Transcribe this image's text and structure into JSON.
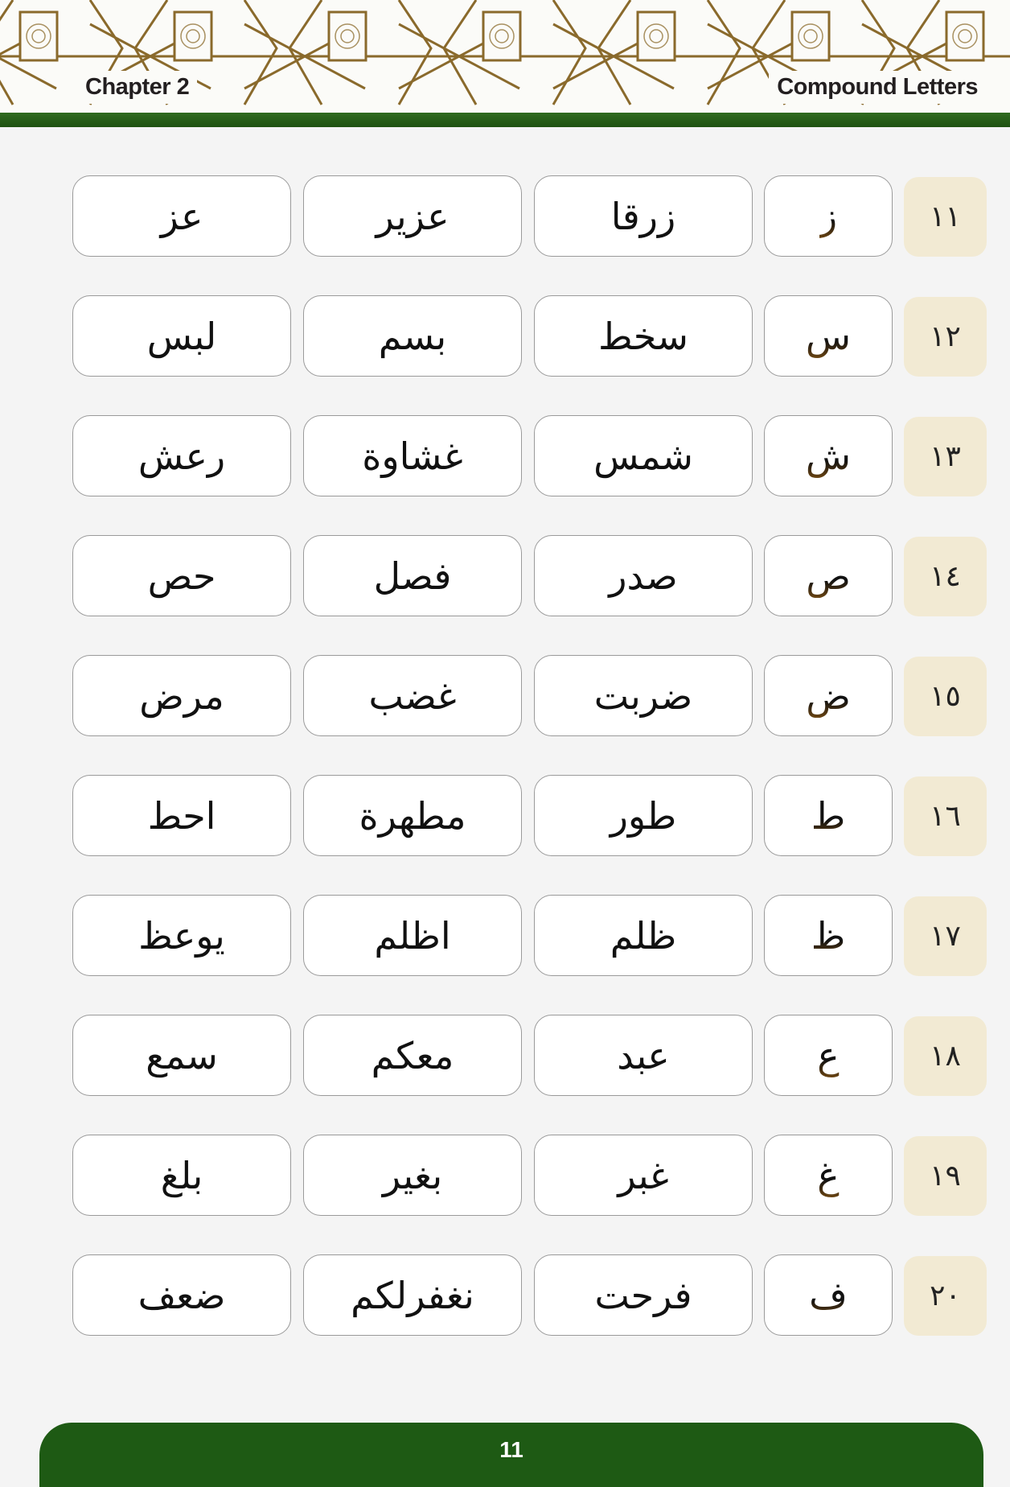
{
  "header": {
    "chapter": "Chapter 2",
    "title": "Compound Letters"
  },
  "colors": {
    "green": "#1e5a14",
    "pattern": "#8a6a2c",
    "number_bg": "#f2ead3"
  },
  "rows": [
    {
      "number": "١١",
      "letter": "ز",
      "words": [
        "زرقا",
        "عزير",
        "عز"
      ]
    },
    {
      "number": "١٢",
      "letter": "س",
      "words": [
        "سخط",
        "بسم",
        "لبس"
      ]
    },
    {
      "number": "١٣",
      "letter": "ش",
      "words": [
        "شمس",
        "غشاوة",
        "رعش"
      ]
    },
    {
      "number": "١٤",
      "letter": "ص",
      "words": [
        "صدر",
        "فصل",
        "حص"
      ]
    },
    {
      "number": "١٥",
      "letter": "ض",
      "words": [
        "ضربت",
        "غضب",
        "مرض"
      ]
    },
    {
      "number": "١٦",
      "letter": "ط",
      "words": [
        "طور",
        "مطهرة",
        "احط"
      ]
    },
    {
      "number": "١٧",
      "letter": "ظ",
      "words": [
        "ظلم",
        "اظلم",
        "يوعظ"
      ]
    },
    {
      "number": "١٨",
      "letter": "ع",
      "words": [
        "عبد",
        "معكم",
        "سمع"
      ]
    },
    {
      "number": "١٩",
      "letter": "غ",
      "words": [
        "غبر",
        "بغير",
        "بلغ"
      ]
    },
    {
      "number": "٢٠",
      "letter": "ف",
      "words": [
        "فرحت",
        "نغفرلكم",
        "ضعف"
      ]
    }
  ],
  "footer": {
    "page_number": "11"
  }
}
